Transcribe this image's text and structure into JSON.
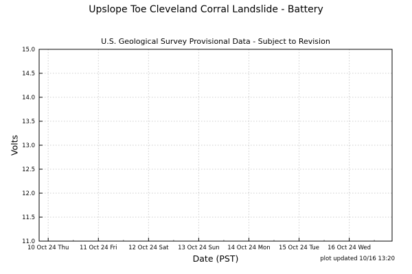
{
  "chart_data": {
    "type": "line",
    "title": "Upslope Toe Cleveland Corral Landslide - Battery",
    "subtitle": "U.S. Geological Survey Provisional Data - Subject to Revision",
    "xlabel": "Date (PST)",
    "ylabel": "Volts",
    "x_tick_labels": [
      "10 Oct 24 Thu",
      "11 Oct 24 Fri",
      "12 Oct 24 Sat",
      "13 Oct 24 Sun",
      "14 Oct 24 Mon",
      "15 Oct 24 Tue",
      "16 Oct 24 Wed"
    ],
    "xlim": [
      "2024-10-09T19:40",
      "2024-10-16T20:30"
    ],
    "y_ticks": [
      11.0,
      11.5,
      12.0,
      12.5,
      13.0,
      13.5,
      14.0,
      14.5,
      15.0
    ],
    "y_tick_labels": [
      "11.0",
      "11.5",
      "12.0",
      "12.5",
      "13.0",
      "13.5",
      "14.0",
      "14.5",
      "15.0"
    ],
    "ylim": [
      11.0,
      15.0
    ],
    "grid": true,
    "series": []
  },
  "footnote": "plot updated 10/16 13:20"
}
